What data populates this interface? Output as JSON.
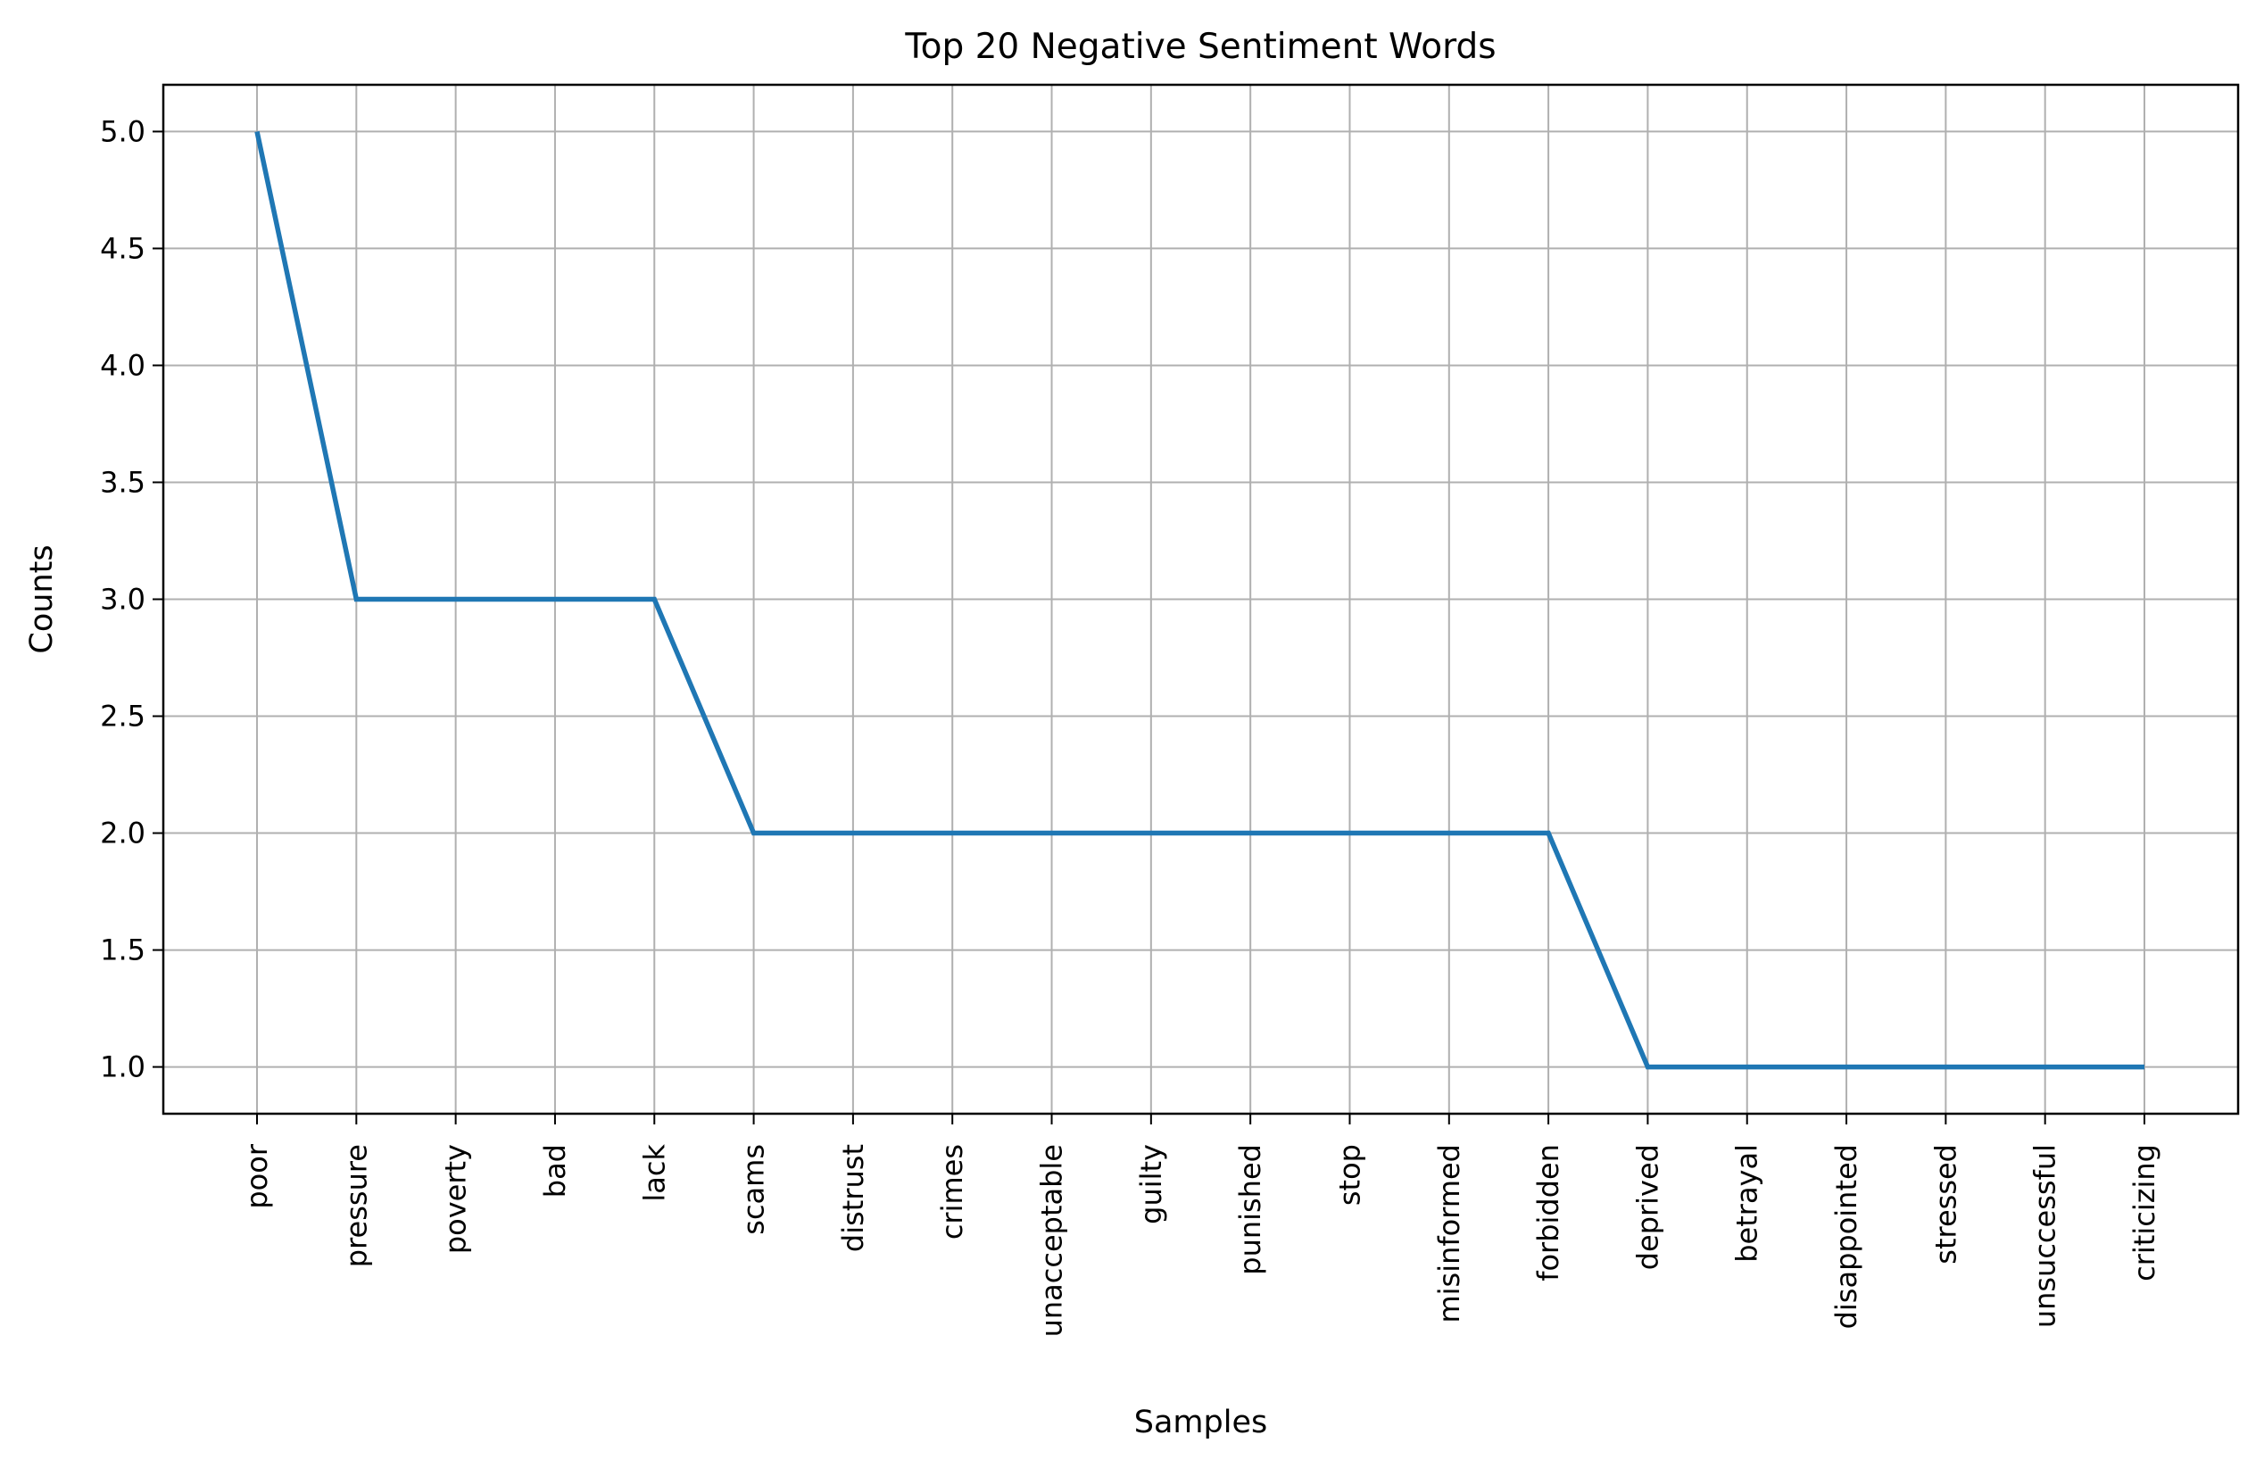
{
  "chart_data": {
    "type": "line",
    "title": "Top 20 Negative Sentiment Words",
    "xlabel": "Samples",
    "ylabel": "Counts",
    "categories": [
      "poor",
      "pressure",
      "poverty",
      "bad",
      "lack",
      "scams",
      "distrust",
      "crimes",
      "unacceptable",
      "guilty",
      "punished",
      "stop",
      "misinformed",
      "forbidden",
      "deprived",
      "betrayal",
      "disappointed",
      "stressed",
      "unsuccessful",
      "criticizing"
    ],
    "series": [
      {
        "values": [
          5,
          3,
          3,
          3,
          3,
          2,
          2,
          2,
          2,
          2,
          2,
          2,
          2,
          2,
          1,
          1,
          1,
          1,
          1,
          1
        ],
        "color": "#1f77b4"
      }
    ],
    "ylim": [
      0.8,
      5.2
    ],
    "yticks": [
      "1.0",
      "1.5",
      "2.0",
      "2.5",
      "3.0",
      "3.5",
      "4.0",
      "4.5",
      "5.0"
    ],
    "grid": true
  }
}
